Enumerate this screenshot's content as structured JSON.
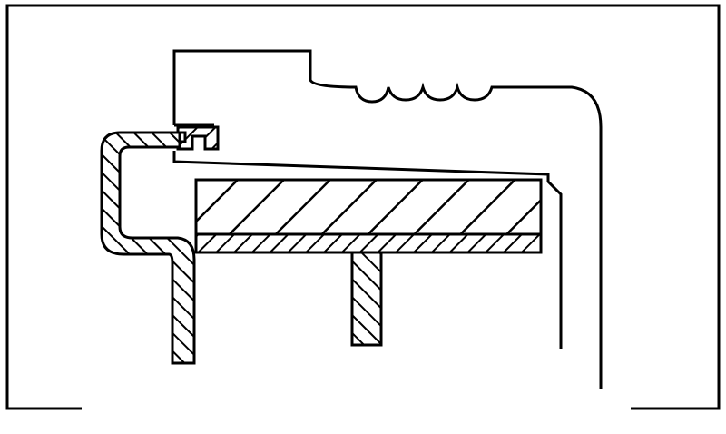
{
  "diagram": {
    "kind": "cross-section line drawing",
    "colors": {
      "background": "#ffffff",
      "line": "#000000",
      "hatch": "#000000"
    },
    "parts": [
      {
        "name": "outer-frame"
      },
      {
        "name": "housing-cap"
      },
      {
        "name": "folded-seal-lip"
      },
      {
        "name": "side-wall-hatched"
      },
      {
        "name": "top-plate-hatched"
      },
      {
        "name": "base-strip-hatched"
      },
      {
        "name": "center-post-hatched"
      },
      {
        "name": "right-vertical-wall"
      }
    ]
  }
}
